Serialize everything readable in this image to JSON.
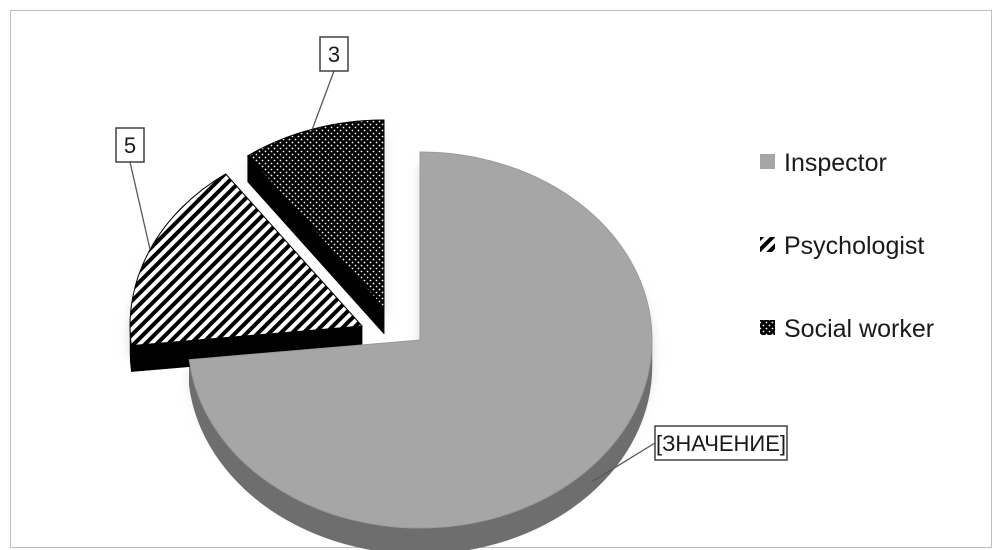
{
  "chart_data": {
    "type": "pie",
    "title": "",
    "three_d": true,
    "exploded": true,
    "categories": [
      "Inspector",
      "Psychologist",
      "Social worker"
    ],
    "values": [
      null,
      5,
      3
    ],
    "data_labels": [
      "[ЗНАЧЕНИЕ]",
      "5",
      "3"
    ],
    "legend": {
      "position": "right",
      "entries": [
        "Inspector",
        "Psychologist",
        "Social worker"
      ]
    },
    "colors": {
      "inspector_top": "#a6a6a6",
      "inspector_side": "#6e6e6e",
      "pattern_ink": "#000000",
      "pattern_ground": "#ffffff"
    }
  }
}
